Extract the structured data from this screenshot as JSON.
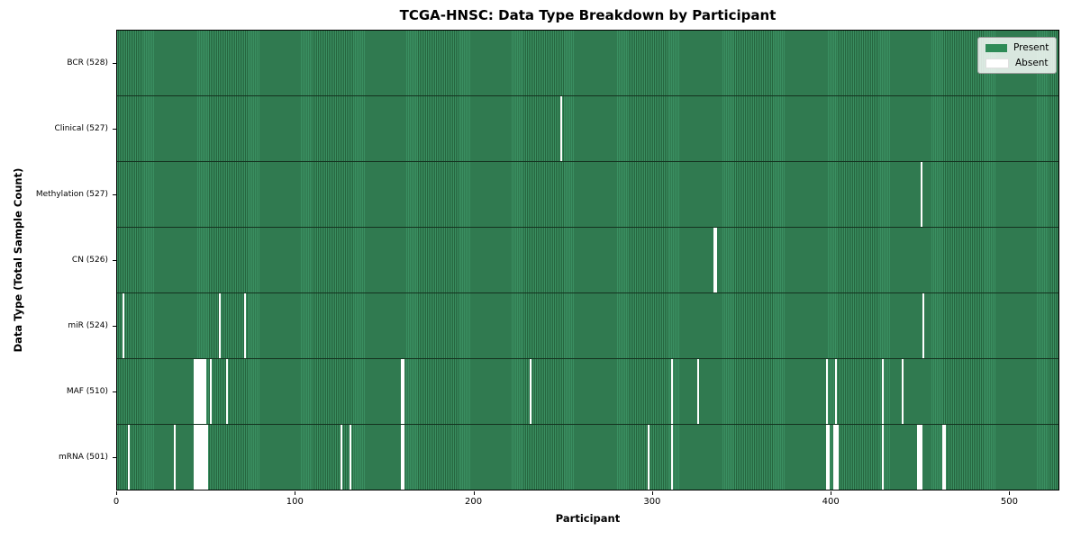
{
  "colors": {
    "present": "#2e8b57",
    "present_stripe_light": "#3a8f61",
    "present_stripe_dark": "#26663f",
    "absent": "#ffffff",
    "axis": "#000000"
  },
  "chart_data": {
    "type": "heatmap",
    "title": "TCGA-HNSC: Data Type Breakdown by Participant",
    "xlabel": "Participant",
    "ylabel": "Data Type (Total Sample Count)",
    "x_range": [
      0,
      528
    ],
    "x_ticks": [
      0,
      100,
      200,
      300,
      400,
      500
    ],
    "legend_position": "upper right",
    "legend_labels": [
      "Present",
      "Absent"
    ],
    "value_encoding": {
      "present": 1,
      "absent": 0
    },
    "rows": [
      {
        "label": "BCR (528)",
        "total": 528,
        "absent_participants": []
      },
      {
        "label": "Clinical (527)",
        "total": 527,
        "absent_participants": [
          248
        ]
      },
      {
        "label": "Methylation (527)",
        "total": 527,
        "absent_participants": [
          450
        ]
      },
      {
        "label": "CN (526)",
        "total": 526,
        "absent_participants": [
          334,
          335
        ]
      },
      {
        "label": "miR (524)",
        "total": 524,
        "absent_participants": [
          3,
          57,
          71,
          451
        ]
      },
      {
        "label": "MAF (510)",
        "total": 510,
        "absent_participants": [
          43,
          44,
          45,
          46,
          47,
          48,
          49,
          52,
          61,
          159,
          160,
          231,
          310,
          325,
          397,
          402,
          428,
          439
        ]
      },
      {
        "label": "mRNA (501)",
        "total": 501,
        "absent_participants": [
          6,
          32,
          43,
          44,
          45,
          46,
          47,
          48,
          49,
          50,
          125,
          130,
          159,
          160,
          297,
          310,
          397,
          398,
          401,
          402,
          403,
          428,
          448,
          449,
          450,
          462,
          463
        ]
      }
    ]
  }
}
